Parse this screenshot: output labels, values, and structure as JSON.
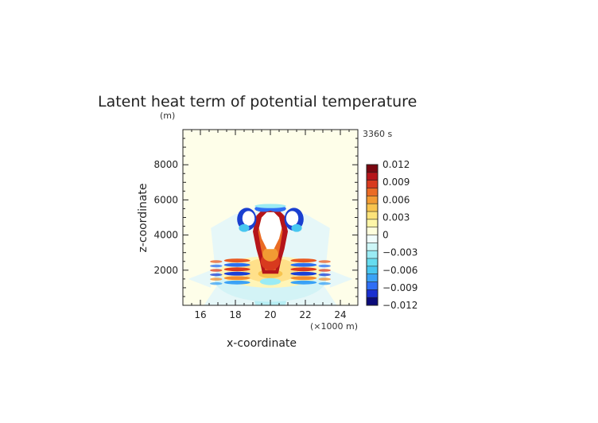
{
  "chart_data": {
    "type": "heatmap",
    "title": "Latent heat term of potential temperature",
    "time_label": "3360 s",
    "xlabel": "x-coordinate",
    "x_unit": "(×1000 m)",
    "ylabel": "z-coordinate",
    "y_unit": "(m)",
    "xlim": [
      15,
      25
    ],
    "ylim": [
      0,
      10000
    ],
    "x_ticks": [
      "16",
      "18",
      "20",
      "22",
      "24"
    ],
    "y_ticks": [
      "2000",
      "4000",
      "6000",
      "8000"
    ],
    "colorbar": {
      "min": -0.012,
      "max": 0.012,
      "tick_labels": [
        "0.012",
        "0.009",
        "0.006",
        "0.003",
        "0",
        "−0.003",
        "−0.006",
        "−0.009",
        "−0.012"
      ]
    }
  }
}
